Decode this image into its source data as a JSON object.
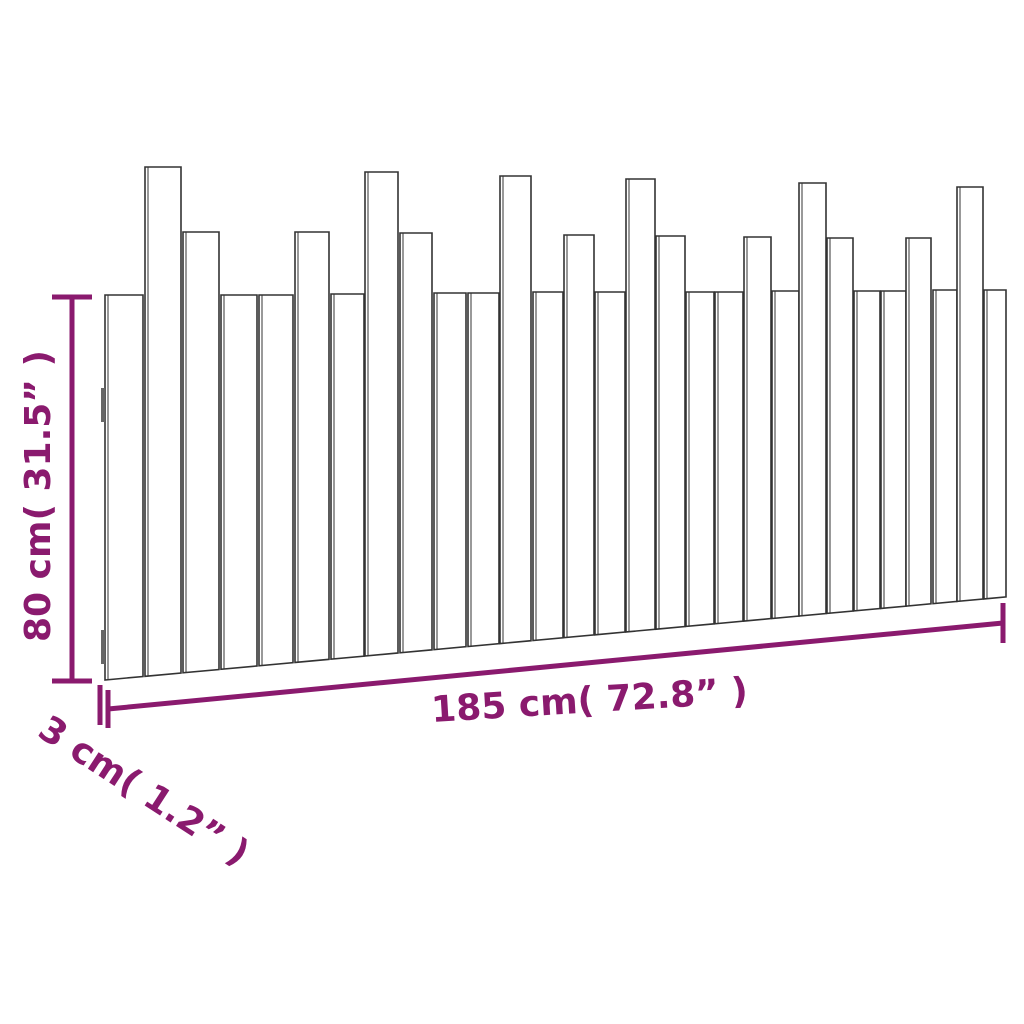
{
  "colors": {
    "dimension": "#8a1a6e",
    "outline": "#333333",
    "fill": "#ffffff"
  },
  "dimensions": {
    "height_label": "80 cm( 31.5” )",
    "width_label": "185 cm( 72.8” )",
    "depth_label": "3 cm( 1.2” )"
  }
}
